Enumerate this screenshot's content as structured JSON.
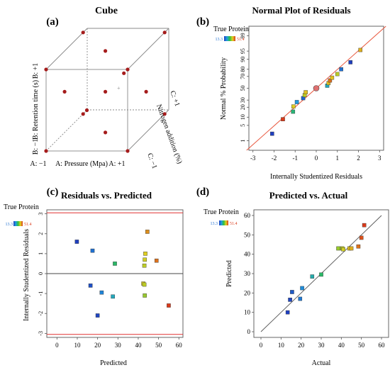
{
  "panels": {
    "a": {
      "label": "(a)",
      "title": "Cube",
      "b_plus": "B: +1",
      "b_axis": "B: Retention time (s)",
      "b_minus": "B: −1",
      "a_minus": "A: −1",
      "a_axis": "A: Pressure  (Mpa)",
      "a_plus": "A: +1",
      "c_plus": "C: +1",
      "c_axis": "Nitrogen addition (%)",
      "c_minus": "C: −1",
      "center_mark": "+"
    },
    "b": {
      "label": "(b)",
      "title": "Normal Plot of Residuals",
      "legend_title": "True Protein",
      "legend_min": "13.3",
      "legend_max": "51.4",
      "xlabel": "Internally Studentized Residuals",
      "ylabel": "Normal % Probability"
    },
    "c": {
      "label": "(c)",
      "title": "Residuals vs. Predicted",
      "legend_title": "True Protein",
      "legend_min": "13.3",
      "legend_max": "51.4",
      "xlabel": "Predicted",
      "ylabel": "Internally Studentized Residuals"
    },
    "d": {
      "label": "(d)",
      "title": "Predicted vs. Actual",
      "legend_title": "True Protein",
      "legend_min": "13.3",
      "legend_max": "51.4",
      "xlabel": "Actual",
      "ylabel": "Predicted"
    }
  },
  "colors": {
    "low": "#1f3fbf",
    "high": "#d93a1a",
    "fit_line": "#e8563c",
    "limit_line": "#e03030",
    "point_dark": "#a51c1c"
  },
  "chart_data": [
    {
      "panel": "a",
      "type": "scatter",
      "points": [
        {
          "A": -1,
          "B": -1,
          "C": -1
        },
        {
          "A": 1,
          "B": -1,
          "C": -1
        },
        {
          "A": -1,
          "B": 1,
          "C": -1
        },
        {
          "A": 1,
          "B": 1,
          "C": -1
        },
        {
          "A": -1,
          "B": -1,
          "C": 1
        },
        {
          "A": 1,
          "B": -1,
          "C": 1
        },
        {
          "A": -1,
          "B": 1,
          "C": 1
        },
        {
          "A": 1,
          "B": 1,
          "C": 1
        },
        {
          "A": -1,
          "B": 0,
          "C": 0
        },
        {
          "A": 1,
          "B": 0,
          "C": 0
        },
        {
          "A": 0,
          "B": -1,
          "C": 0
        },
        {
          "A": 0,
          "B": 1,
          "C": 0
        },
        {
          "A": 0,
          "B": 0,
          "C": -1
        },
        {
          "A": 0,
          "B": 0,
          "C": 1
        },
        {
          "A": 0,
          "B": 0,
          "C": 0
        }
      ]
    },
    {
      "panel": "b",
      "type": "scatter",
      "xlim": [
        -3,
        3
      ],
      "xticks": [
        -3,
        -2,
        -1,
        0,
        1,
        2,
        3
      ],
      "yticks": [
        1,
        5,
        10,
        20,
        30,
        50,
        70,
        80,
        90,
        95,
        99
      ],
      "points": [
        {
          "x": -2.09,
          "y": 2.2,
          "v": 13.3
        },
        {
          "x": -1.58,
          "y": 8.5,
          "v": 51.4
        },
        {
          "x": -1.1,
          "y": 15.0,
          "v": 29
        },
        {
          "x": -1.08,
          "y": 21.0,
          "v": 42
        },
        {
          "x": -0.92,
          "y": 27.0,
          "v": 22
        },
        {
          "x": -0.62,
          "y": 33.0,
          "v": 17
        },
        {
          "x": -0.55,
          "y": 38.0,
          "v": 40
        },
        {
          "x": -0.5,
          "y": 43.0,
          "v": 43
        },
        {
          "x": 0.0,
          "y": 50.0,
          "v": 28,
          "highlight": true
        },
        {
          "x": 0.52,
          "y": 54.5,
          "v": 25
        },
        {
          "x": 0.58,
          "y": 59.0,
          "v": 43
        },
        {
          "x": 0.65,
          "y": 63.5,
          "v": 48
        },
        {
          "x": 0.75,
          "y": 68.0,
          "v": 43
        },
        {
          "x": 1.0,
          "y": 73.5,
          "v": 40
        },
        {
          "x": 1.18,
          "y": 80.0,
          "v": 18
        },
        {
          "x": 1.62,
          "y": 87.5,
          "v": 10
        },
        {
          "x": 2.09,
          "y": 95.5,
          "v": 44
        }
      ],
      "fit_line": {
        "from": {
          "x": -3.3,
          "y": 0.3
        },
        "to": {
          "x": 3.3,
          "y": 99.7
        }
      }
    },
    {
      "panel": "c",
      "type": "scatter",
      "xlim": [
        -5,
        62
      ],
      "ylim": [
        -3.2,
        3.2
      ],
      "xticks": [
        0,
        10,
        20,
        30,
        40,
        50,
        60
      ],
      "yticks": [
        -3,
        -2,
        -1,
        0,
        1,
        2,
        3
      ],
      "limit_lines": [
        3.05,
        -3.05
      ],
      "zero_line": 0,
      "points": [
        {
          "x": 9.8,
          "y": 1.6,
          "v": 13.3
        },
        {
          "x": 17.5,
          "y": 1.15,
          "v": 18
        },
        {
          "x": 28.5,
          "y": 0.5,
          "v": 30
        },
        {
          "x": 43.5,
          "y": 1.0,
          "v": 42
        },
        {
          "x": 43.2,
          "y": 0.7,
          "v": 41
        },
        {
          "x": 43.0,
          "y": 0.4,
          "v": 40
        },
        {
          "x": 44.5,
          "y": 2.1,
          "v": 46
        },
        {
          "x": 49.0,
          "y": 0.65,
          "v": 48
        },
        {
          "x": 16.5,
          "y": -0.6,
          "v": 15
        },
        {
          "x": 22.0,
          "y": -0.95,
          "v": 20
        },
        {
          "x": 27.5,
          "y": -1.15,
          "v": 25
        },
        {
          "x": 42.5,
          "y": -0.5,
          "v": 42
        },
        {
          "x": 43.0,
          "y": -0.55,
          "v": 40
        },
        {
          "x": 43.2,
          "y": -1.1,
          "v": 38
        },
        {
          "x": 20.0,
          "y": -2.1,
          "v": 14
        },
        {
          "x": 55.0,
          "y": -1.6,
          "v": 51.4
        }
      ]
    },
    {
      "panel": "d",
      "type": "scatter",
      "xlim": [
        0,
        60
      ],
      "ylim": [
        0,
        60
      ],
      "xticks": [
        0,
        10,
        20,
        30,
        40,
        50,
        60
      ],
      "yticks": [
        0,
        10,
        20,
        30,
        40,
        50,
        60
      ],
      "diagonal": {
        "from": {
          "x": 0,
          "y": 0
        },
        "to": {
          "x": 60,
          "y": 60
        }
      },
      "points": [
        {
          "x": 13.3,
          "y": 10.0,
          "v": 13.3
        },
        {
          "x": 14.5,
          "y": 16.5,
          "v": 14
        },
        {
          "x": 15.5,
          "y": 20.5,
          "v": 16
        },
        {
          "x": 19.5,
          "y": 17.0,
          "v": 19
        },
        {
          "x": 20.5,
          "y": 22.5,
          "v": 21
        },
        {
          "x": 25.5,
          "y": 28.5,
          "v": 26
        },
        {
          "x": 30.0,
          "y": 29.5,
          "v": 30
        },
        {
          "x": 38.5,
          "y": 43.0,
          "v": 38
        },
        {
          "x": 40.5,
          "y": 43.0,
          "v": 40
        },
        {
          "x": 41.0,
          "y": 42.5,
          "v": 41
        },
        {
          "x": 44.0,
          "y": 43.0,
          "v": 43
        },
        {
          "x": 45.0,
          "y": 43.0,
          "v": 44
        },
        {
          "x": 48.5,
          "y": 44.0,
          "v": 48
        },
        {
          "x": 50.0,
          "y": 48.5,
          "v": 50
        },
        {
          "x": 51.4,
          "y": 55.0,
          "v": 51.4
        }
      ]
    }
  ]
}
